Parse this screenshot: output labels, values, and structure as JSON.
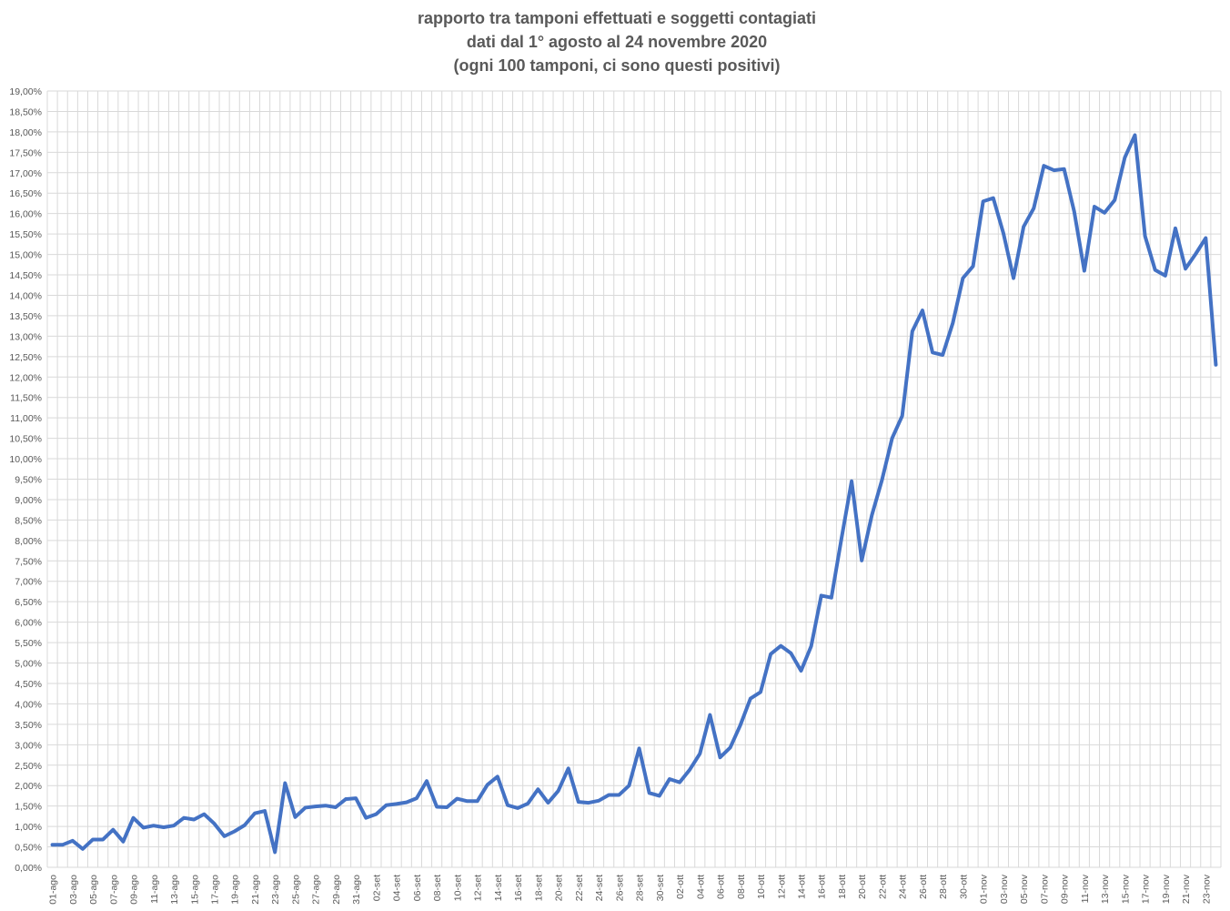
{
  "chart_data": {
    "type": "line",
    "title": [
      "rapporto tra tamponi effettuati e soggetti contagiati",
      "dati dal 1° agosto al 24 novembre 2020",
      "(ogni 100 tamponi, ci sono questi positivi)"
    ],
    "categories": [
      "01-ago",
      null,
      "03-ago",
      null,
      "05-ago",
      null,
      "07-ago",
      null,
      "09-ago",
      null,
      "11-ago",
      null,
      "13-ago",
      null,
      "15-ago",
      null,
      "17-ago",
      null,
      "19-ago",
      null,
      "21-ago",
      null,
      "23-ago",
      null,
      "25-ago",
      null,
      "27-ago",
      null,
      "29-ago",
      null,
      "31-ago",
      null,
      "02-set",
      null,
      "04-set",
      null,
      "06-set",
      null,
      "08-set",
      null,
      "10-set",
      null,
      "12-set",
      null,
      "14-set",
      null,
      "16-set",
      null,
      "18-set",
      null,
      "20-set",
      null,
      "22-set",
      null,
      "24-set",
      null,
      "26-set",
      null,
      "28-set",
      null,
      "30-set",
      null,
      "02-ott",
      null,
      "04-ott",
      null,
      "06-ott",
      null,
      "08-ott",
      null,
      "10-ott",
      null,
      "12-ott",
      null,
      "14-ott",
      null,
      "16-ott",
      null,
      "18-ott",
      null,
      "20-ott",
      null,
      "22-ott",
      null,
      "24-ott",
      null,
      "26-ott",
      null,
      "28-ott",
      null,
      "30-ott",
      null,
      "01-nov",
      null,
      "03-nov",
      null,
      "05-nov",
      null,
      "07-nov",
      null,
      "09-nov",
      null,
      "11-nov",
      null,
      "13-nov",
      null,
      "15-nov",
      null,
      "17-nov",
      null,
      "19-nov",
      null,
      "21-nov",
      null,
      "23-nov",
      null
    ],
    "series": [
      {
        "color": "#4472c4",
        "values": [
          0.55,
          0.55,
          0.65,
          0.45,
          0.68,
          0.68,
          0.92,
          0.63,
          1.21,
          0.97,
          1.02,
          0.98,
          1.02,
          1.21,
          1.17,
          1.3,
          1.07,
          0.76,
          0.88,
          1.03,
          1.32,
          1.38,
          0.37,
          2.06,
          1.23,
          1.46,
          1.49,
          1.51,
          1.47,
          1.67,
          1.69,
          1.21,
          1.3,
          1.52,
          1.55,
          1.59,
          1.69,
          2.11,
          1.48,
          1.47,
          1.68,
          1.62,
          1.62,
          2.02,
          2.22,
          1.52,
          1.45,
          1.56,
          1.91,
          1.58,
          1.87,
          2.42,
          1.6,
          1.58,
          1.63,
          1.77,
          1.77,
          2.0,
          2.91,
          1.82,
          1.75,
          2.16,
          2.08,
          2.39,
          2.78,
          3.73,
          2.69,
          2.93,
          3.48,
          4.13,
          4.29,
          5.22,
          5.42,
          5.24,
          4.81,
          5.41,
          6.65,
          6.6,
          8.05,
          9.45,
          7.51,
          8.62,
          9.48,
          10.5,
          11.05,
          13.12,
          13.63,
          12.6,
          12.54,
          13.32,
          14.42,
          14.71,
          16.3,
          16.38,
          15.52,
          14.42,
          15.68,
          16.13,
          17.17,
          17.06,
          17.09,
          16.05,
          14.6,
          16.17,
          16.02,
          16.33,
          17.37,
          17.92,
          15.45,
          14.62,
          14.48,
          15.64,
          14.65,
          15.01,
          15.4,
          12.3
        ]
      }
    ],
    "ylim": [
      0,
      19
    ],
    "yticks": [
      {
        "value": 0,
        "label": "0,00%"
      },
      {
        "value": 0.5,
        "label": "0,50%"
      },
      {
        "value": 1,
        "label": "1,00%"
      },
      {
        "value": 1.5,
        "label": "1,50%"
      },
      {
        "value": 2,
        "label": "2,00%"
      },
      {
        "value": 2.5,
        "label": "2,50%"
      },
      {
        "value": 3,
        "label": "3,00%"
      },
      {
        "value": 3.5,
        "label": "3,50%"
      },
      {
        "value": 4,
        "label": "4,00%"
      },
      {
        "value": 4.5,
        "label": "4,50%"
      },
      {
        "value": 5,
        "label": "5,00%"
      },
      {
        "value": 5.5,
        "label": "5,50%"
      },
      {
        "value": 6,
        "label": "6,00%"
      },
      {
        "value": 6.5,
        "label": "6,50%"
      },
      {
        "value": 7,
        "label": "7,00%"
      },
      {
        "value": 7.5,
        "label": "7,50%"
      },
      {
        "value": 8,
        "label": "8,00%"
      },
      {
        "value": 8.5,
        "label": "8,50%"
      },
      {
        "value": 9,
        "label": "9,00%"
      },
      {
        "value": 9.5,
        "label": "9,50%"
      },
      {
        "value": 10,
        "label": "10,00%"
      },
      {
        "value": 10.5,
        "label": "10,50%"
      },
      {
        "value": 11,
        "label": "11,00%"
      },
      {
        "value": 11.5,
        "label": "11,50%"
      },
      {
        "value": 12,
        "label": "12,00%"
      },
      {
        "value": 12.5,
        "label": "12,50%"
      },
      {
        "value": 13,
        "label": "13,00%"
      },
      {
        "value": 13.5,
        "label": "13,50%"
      },
      {
        "value": 14,
        "label": "14,00%"
      },
      {
        "value": 14.5,
        "label": "14,50%"
      },
      {
        "value": 15,
        "label": "15,00%"
      },
      {
        "value": 15.5,
        "label": "15,50%"
      },
      {
        "value": 16,
        "label": "16,00%"
      },
      {
        "value": 16.5,
        "label": "16,50%"
      },
      {
        "value": 17,
        "label": "17,00%"
      },
      {
        "value": 17.5,
        "label": "17,50%"
      },
      {
        "value": 18,
        "label": "18,00%"
      },
      {
        "value": 18.5,
        "label": "18,50%"
      },
      {
        "value": 19,
        "label": "19,00%"
      }
    ],
    "grid": true
  }
}
